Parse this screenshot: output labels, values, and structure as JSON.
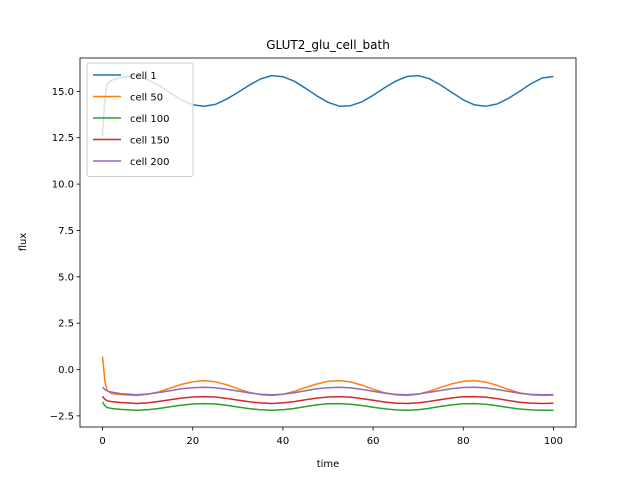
{
  "chart_data": {
    "type": "line",
    "title": "GLUT2_glu_cell_bath",
    "xlabel": "time",
    "ylabel": "flux",
    "xlim": [
      -5,
      105
    ],
    "ylim": [
      -3.1,
      16.8
    ],
    "xticks": [
      0,
      20,
      40,
      60,
      80,
      100
    ],
    "xtick_labels": [
      "0",
      "20",
      "40",
      "60",
      "80",
      "100"
    ],
    "yticks": [
      -2.5,
      0.0,
      2.5,
      5.0,
      7.5,
      10.0,
      12.5,
      15.0
    ],
    "ytick_labels": [
      "−2.5",
      "0.0",
      "2.5",
      "5.0",
      "7.5",
      "10.0",
      "12.5",
      "15.0"
    ],
    "grid": false,
    "legend_position": "upper-left",
    "series": [
      {
        "name": "cell 1",
        "color": "#1f77b4",
        "x": [
          0,
          0.5,
          1,
          2,
          4,
          7.5,
          10,
          12.5,
          15,
          17.5,
          20,
          22.5,
          25,
          27.5,
          30,
          32.5,
          35,
          37.5,
          40,
          42.5,
          45,
          47.5,
          50,
          52.5,
          55,
          57.5,
          60,
          62.5,
          65,
          67.5,
          70,
          72.5,
          75,
          77.5,
          80,
          82.5,
          85,
          87.5,
          90,
          92.5,
          95,
          97.5,
          100
        ],
        "values": [
          12.6,
          14.6,
          15.4,
          15.6,
          15.75,
          15.85,
          15.63,
          15.32,
          14.92,
          14.54,
          14.28,
          14.2,
          14.3,
          14.58,
          14.94,
          15.33,
          15.67,
          15.85,
          15.79,
          15.55,
          15.17,
          14.76,
          14.41,
          14.2,
          14.23,
          14.43,
          14.79,
          15.19,
          15.55,
          15.8,
          15.85,
          15.68,
          15.34,
          14.94,
          14.54,
          14.27,
          14.2,
          14.32,
          14.62,
          15.0,
          15.41,
          15.72,
          15.8
        ]
      },
      {
        "name": "cell 50",
        "color": "#ff7f0e",
        "x": [
          0,
          0.5,
          1,
          2,
          4,
          7.5,
          10,
          12.5,
          15,
          17.5,
          20,
          22.5,
          25,
          27.5,
          30,
          32.5,
          35,
          37.5,
          40,
          42.5,
          45,
          47.5,
          50,
          52.5,
          55,
          57.5,
          60,
          62.5,
          65,
          67.5,
          70,
          72.5,
          75,
          77.5,
          80,
          82.5,
          85,
          87.5,
          90,
          92.5,
          95,
          97.5,
          100
        ],
        "values": [
          0.7,
          -0.6,
          -1.15,
          -1.3,
          -1.35,
          -1.4,
          -1.33,
          -1.2,
          -1.0,
          -0.8,
          -0.66,
          -0.6,
          -0.66,
          -0.82,
          -1.04,
          -1.23,
          -1.36,
          -1.4,
          -1.34,
          -1.18,
          -0.97,
          -0.78,
          -0.64,
          -0.6,
          -0.67,
          -0.84,
          -1.06,
          -1.25,
          -1.37,
          -1.4,
          -1.33,
          -1.17,
          -0.96,
          -0.77,
          -0.64,
          -0.6,
          -0.68,
          -0.85,
          -1.07,
          -1.26,
          -1.37,
          -1.4,
          -1.38
        ]
      },
      {
        "name": "cell 100",
        "color": "#2ca02c",
        "x": [
          0,
          0.5,
          1,
          2,
          4,
          7.5,
          10,
          12.5,
          15,
          17.5,
          20,
          22.5,
          25,
          27.5,
          30,
          32.5,
          35,
          37.5,
          40,
          42.5,
          45,
          47.5,
          50,
          52.5,
          55,
          57.5,
          60,
          62.5,
          65,
          67.5,
          70,
          72.5,
          75,
          77.5,
          80,
          82.5,
          85,
          87.5,
          90,
          92.5,
          95,
          97.5,
          100
        ],
        "values": [
          -1.75,
          -1.95,
          -2.05,
          -2.1,
          -2.15,
          -2.2,
          -2.17,
          -2.1,
          -2.01,
          -1.92,
          -1.86,
          -1.84,
          -1.86,
          -1.93,
          -2.02,
          -2.11,
          -2.17,
          -2.2,
          -2.17,
          -2.1,
          -2.0,
          -1.91,
          -1.85,
          -1.84,
          -1.87,
          -1.94,
          -2.04,
          -2.12,
          -2.18,
          -2.2,
          -2.17,
          -2.09,
          -1.99,
          -1.91,
          -1.85,
          -1.84,
          -1.87,
          -1.95,
          -2.05,
          -2.13,
          -2.18,
          -2.2,
          -2.2
        ]
      },
      {
        "name": "cell 150",
        "color": "#d62728",
        "x": [
          0,
          0.5,
          1,
          2,
          4,
          7.5,
          10,
          12.5,
          15,
          17.5,
          20,
          22.5,
          25,
          27.5,
          30,
          32.5,
          35,
          37.5,
          40,
          42.5,
          45,
          47.5,
          50,
          52.5,
          55,
          57.5,
          60,
          62.5,
          65,
          67.5,
          70,
          72.5,
          75,
          77.5,
          80,
          82.5,
          85,
          87.5,
          90,
          92.5,
          95,
          97.5,
          100
        ],
        "values": [
          -1.45,
          -1.6,
          -1.68,
          -1.73,
          -1.78,
          -1.83,
          -1.8,
          -1.72,
          -1.63,
          -1.54,
          -1.48,
          -1.46,
          -1.48,
          -1.56,
          -1.65,
          -1.74,
          -1.8,
          -1.83,
          -1.8,
          -1.73,
          -1.63,
          -1.54,
          -1.48,
          -1.46,
          -1.49,
          -1.57,
          -1.66,
          -1.75,
          -1.81,
          -1.83,
          -1.8,
          -1.72,
          -1.62,
          -1.53,
          -1.47,
          -1.46,
          -1.49,
          -1.57,
          -1.67,
          -1.76,
          -1.81,
          -1.83,
          -1.82
        ]
      },
      {
        "name": "cell 200",
        "color": "#9467bd",
        "x": [
          0,
          0.5,
          1,
          2,
          4,
          7.5,
          10,
          12.5,
          15,
          17.5,
          20,
          22.5,
          25,
          27.5,
          30,
          32.5,
          35,
          37.5,
          40,
          42.5,
          45,
          47.5,
          50,
          52.5,
          55,
          57.5,
          60,
          62.5,
          65,
          67.5,
          70,
          72.5,
          75,
          77.5,
          80,
          82.5,
          85,
          87.5,
          90,
          92.5,
          95,
          97.5,
          100
        ],
        "values": [
          -0.95,
          -1.08,
          -1.15,
          -1.22,
          -1.3,
          -1.36,
          -1.32,
          -1.24,
          -1.14,
          -1.04,
          -0.98,
          -0.96,
          -0.98,
          -1.06,
          -1.16,
          -1.26,
          -1.33,
          -1.36,
          -1.33,
          -1.25,
          -1.14,
          -1.04,
          -0.98,
          -0.96,
          -0.99,
          -1.07,
          -1.17,
          -1.27,
          -1.34,
          -1.36,
          -1.32,
          -1.23,
          -1.13,
          -1.03,
          -0.97,
          -0.96,
          -0.99,
          -1.08,
          -1.18,
          -1.28,
          -1.34,
          -1.36,
          -1.35
        ]
      }
    ]
  }
}
